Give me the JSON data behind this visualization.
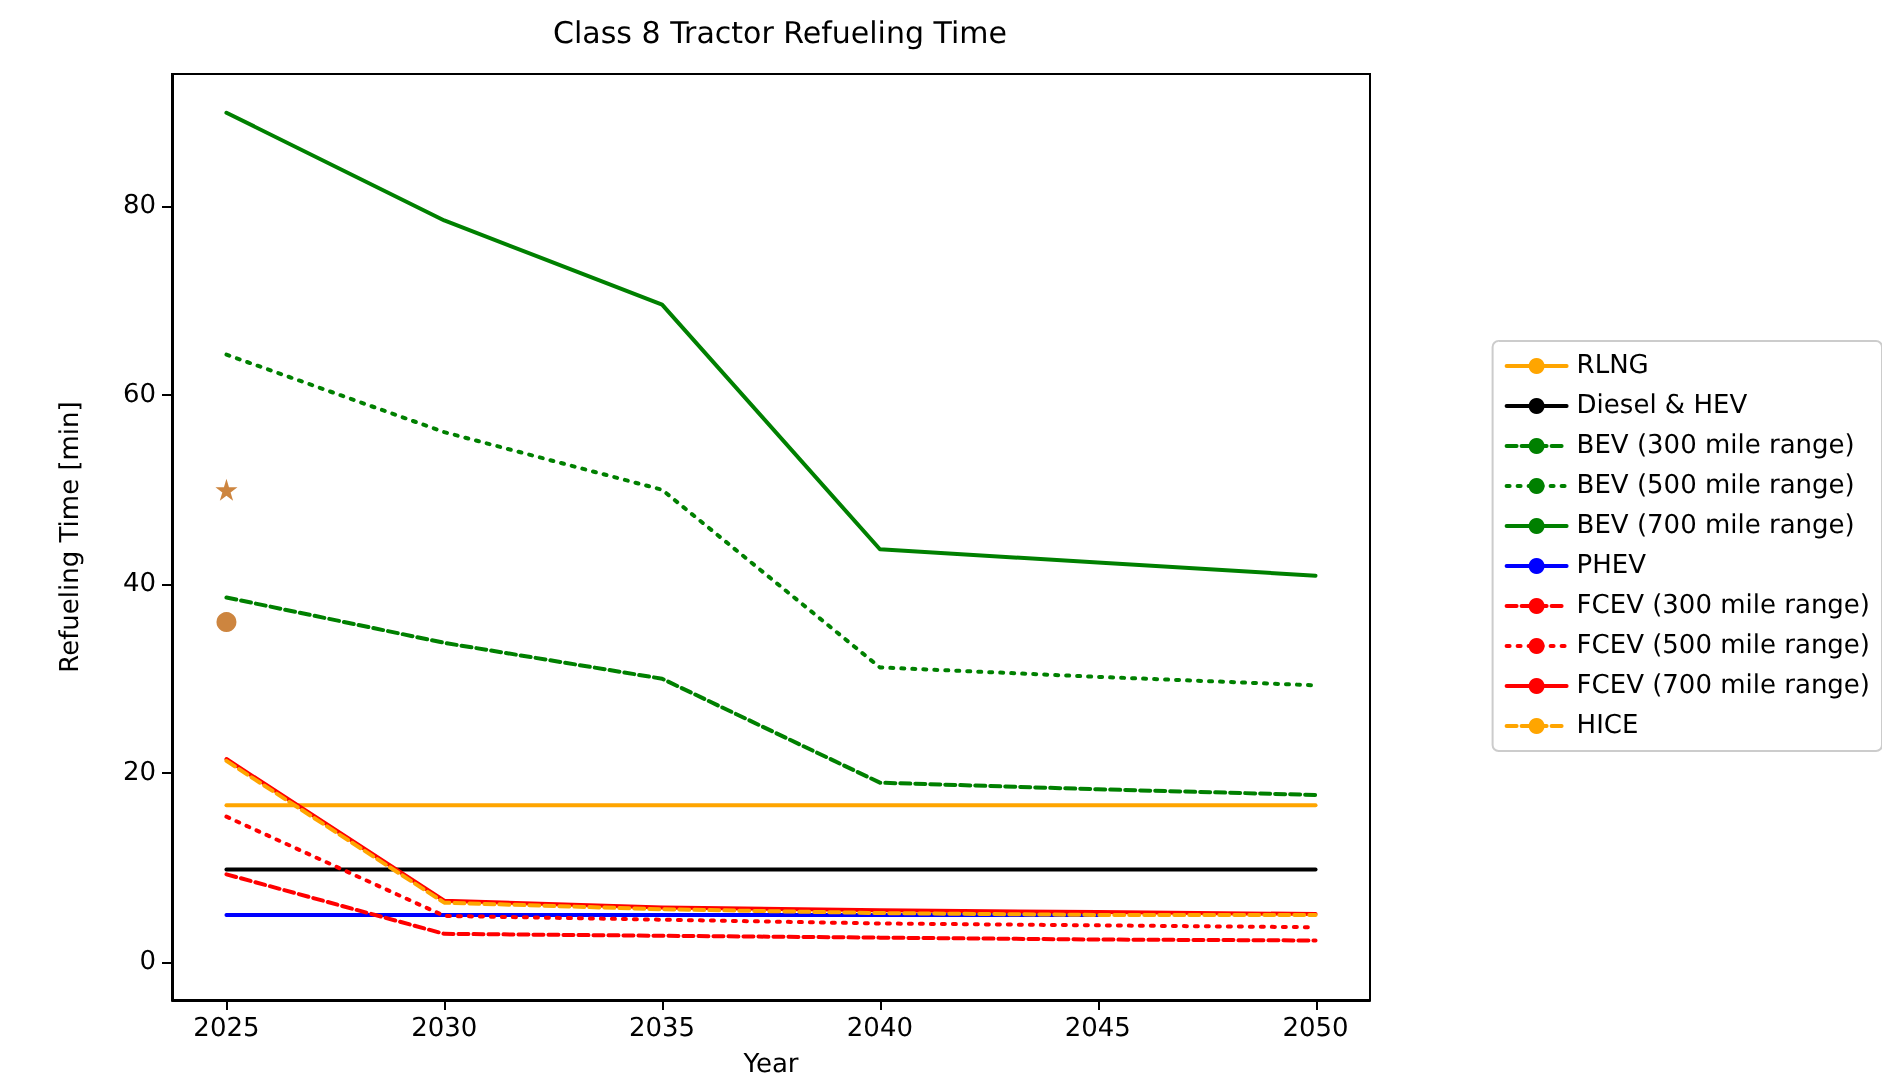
{
  "chart_data": {
    "type": "line",
    "title": "Class 8 Tractor Refueling Time",
    "xlabel": "Year",
    "ylabel": "Refueling Time [min]",
    "x": [
      2025,
      2030,
      2035,
      2040,
      2045,
      2050
    ],
    "series": [
      {
        "name": "RLNG",
        "color": "#ffa500",
        "values": [
          16.6,
          16.6,
          16.6,
          16.6,
          16.6,
          16.6
        ],
        "line_style": "solid",
        "marker": "none"
      },
      {
        "name": "Diesel & HEV",
        "color": "#000000",
        "values": [
          9.8,
          9.8,
          9.8,
          9.8,
          9.8,
          9.8
        ],
        "line_style": "solid",
        "marker": "none"
      },
      {
        "name": "BEV (300 mile range)",
        "color": "#008000",
        "values": [
          38.6,
          33.8,
          30,
          19,
          18.3,
          17.7
        ],
        "line_style": "dashed",
        "marker": "none"
      },
      {
        "name": "BEV (500 mile range)",
        "color": "#008000",
        "values": [
          64.3,
          56.1,
          50,
          31.2,
          30.2,
          29.3
        ],
        "line_style": "dotted",
        "marker": "none"
      },
      {
        "name": "BEV (700 mile range)",
        "color": "#008000",
        "values": [
          89.9,
          78.5,
          69.6,
          43.7,
          42.3,
          40.9
        ],
        "line_style": "solid",
        "marker": "none"
      },
      {
        "name": "PHEV",
        "color": "#0000ff",
        "values": [
          5,
          5,
          5,
          5,
          5,
          null
        ],
        "line_style": "solid",
        "marker": "none"
      },
      {
        "name": "FCEV (300 mile range)",
        "color": "#ff0000",
        "values": [
          9.3,
          3,
          2.8,
          2.6,
          2.4,
          2.3
        ],
        "line_style": "dashed",
        "marker": "none"
      },
      {
        "name": "FCEV (500 mile range)",
        "color": "#ff0000",
        "values": [
          15.4,
          4.9,
          4.5,
          4.1,
          3.9,
          3.7
        ],
        "line_style": "dotted",
        "marker": "none"
      },
      {
        "name": "FCEV (700 mile range)",
        "color": "#ff0000",
        "values": [
          21.5,
          6.5,
          5.8,
          5.5,
          5.3,
          5.1
        ],
        "line_style": "solid",
        "marker": "none"
      },
      {
        "name": "HICE",
        "color": "#ffa500",
        "values": [
          21.3,
          6.3,
          5.6,
          5.2,
          5,
          5
        ],
        "line_style": "dashed",
        "marker": "none"
      },
      {
        "color": "#cd853f",
        "x": [
          2025
        ],
        "values": [
          36
        ],
        "line_style": "solid",
        "marker": "circle"
      },
      {
        "color": "#cd853f",
        "x": [
          2025
        ],
        "values": [
          50
        ],
        "line_style": "solid",
        "marker": "star"
      }
    ],
    "xlim": [
      2023.75,
      2051.25
    ],
    "xticks": [
      2025,
      2030,
      2035,
      2040,
      2045,
      2050
    ],
    "ylim": [
      -4,
      94
    ],
    "yticks": [
      0,
      20,
      40,
      60,
      80
    ],
    "grid": false,
    "legend": "right"
  }
}
